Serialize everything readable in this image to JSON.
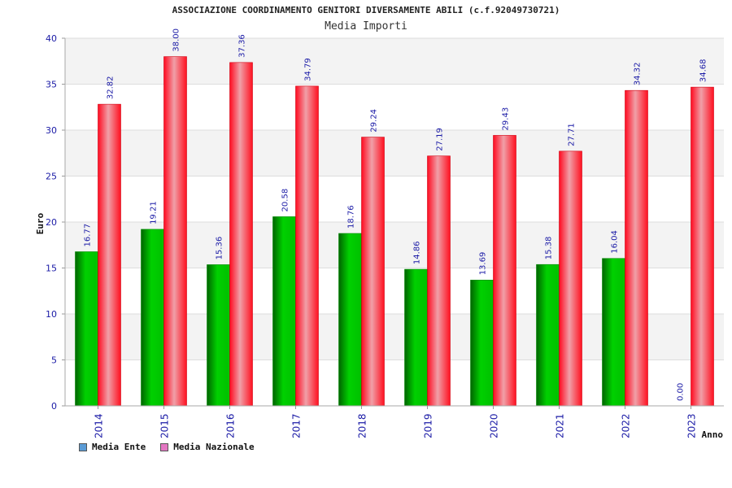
{
  "page": {
    "title": "ASSOCIAZIONE COORDINAMENTO GENITORI DIVERSAMENTE ABILI (c.f.92049730721)",
    "subtitle": "Media Importi"
  },
  "chart_data": {
    "type": "bar",
    "title": "Media Importi",
    "xlabel": "Anno",
    "ylabel": "Euro",
    "ylim": [
      0,
      40
    ],
    "yticks": [
      0,
      5,
      10,
      15,
      20,
      25,
      30,
      35,
      40
    ],
    "grid": true,
    "legend_position": "bottom-left",
    "categories": [
      "2014",
      "2015",
      "2016",
      "2017",
      "2018",
      "2019",
      "2020",
      "2021",
      "2022",
      "2023"
    ],
    "series": [
      {
        "name": "Media Ente",
        "legend_color": "#5b9bd5",
        "bar_color": "#00c000",
        "values": [
          16.77,
          19.21,
          15.36,
          20.58,
          18.76,
          14.86,
          13.69,
          15.38,
          16.04,
          0.0
        ],
        "labels": [
          "16.77",
          "19.21",
          "15.36",
          "20.58",
          "18.76",
          "14.86",
          "13.69",
          "15.38",
          "16.04",
          "0.00"
        ]
      },
      {
        "name": "Media Nazionale",
        "legend_color": "#e377c2",
        "bar_color": "#ff1a2e",
        "values": [
          32.82,
          38.0,
          37.36,
          34.79,
          29.24,
          27.19,
          29.43,
          27.71,
          34.32,
          34.68
        ],
        "labels": [
          "32.82",
          "38.00",
          "37.36",
          "34.79",
          "29.24",
          "27.19",
          "29.43",
          "27.71",
          "34.32",
          "34.68"
        ]
      }
    ]
  }
}
